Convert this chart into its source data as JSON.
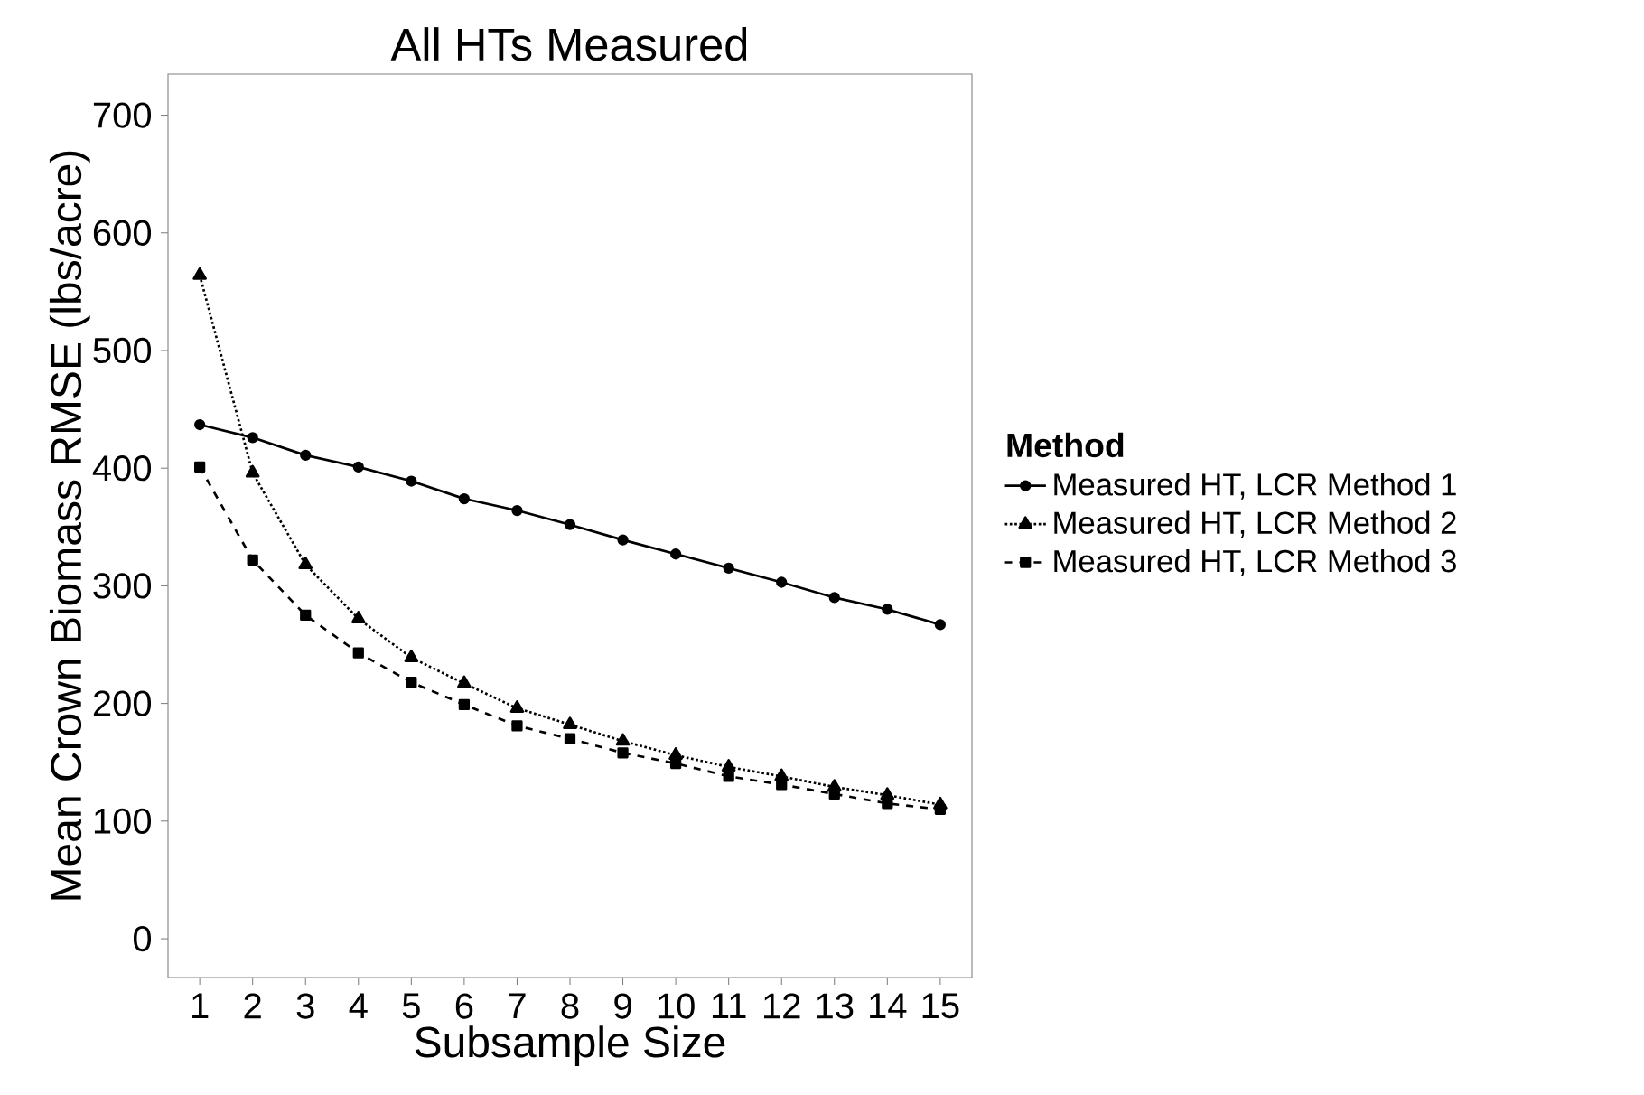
{
  "chart_data": {
    "type": "line",
    "title": "All HTs Measured",
    "xlabel": "Subsample Size",
    "ylabel": "Mean Crown Biomass RMSE (lbs/acre)",
    "legend_title": "Method",
    "x": [
      1,
      2,
      3,
      4,
      5,
      6,
      7,
      8,
      9,
      10,
      11,
      12,
      13,
      14,
      15
    ],
    "series": [
      {
        "name": "Measured HT, LCR Method 1",
        "color": "#000000",
        "marker": "circle",
        "line_style": "solid",
        "values": [
          437,
          426,
          411,
          401,
          389,
          374,
          364,
          352,
          339,
          327,
          315,
          303,
          290,
          280,
          267
        ]
      },
      {
        "name": "Measured HT, LCR Method 2",
        "color": "#000000",
        "marker": "triangle",
        "line_style": "dotted",
        "values": [
          564,
          396,
          318,
          272,
          239,
          217,
          196,
          182,
          168,
          156,
          146,
          138,
          129,
          122,
          114
        ]
      },
      {
        "name": "Measured HT, LCR Method 3",
        "color": "#000000",
        "marker": "square",
        "line_style": "dashed",
        "values": [
          401,
          322,
          275,
          243,
          218,
          199,
          181,
          170,
          158,
          149,
          138,
          131,
          123,
          115,
          110
        ]
      }
    ],
    "xlim": [
      0.4,
      15.6
    ],
    "ylim": [
      -33,
      735
    ],
    "xticks": [
      1,
      2,
      3,
      4,
      5,
      6,
      7,
      8,
      9,
      10,
      11,
      12,
      13,
      14,
      15
    ],
    "yticks": [
      0,
      100,
      200,
      300,
      400,
      500,
      600,
      700
    ],
    "grid": false,
    "legend": "right"
  }
}
